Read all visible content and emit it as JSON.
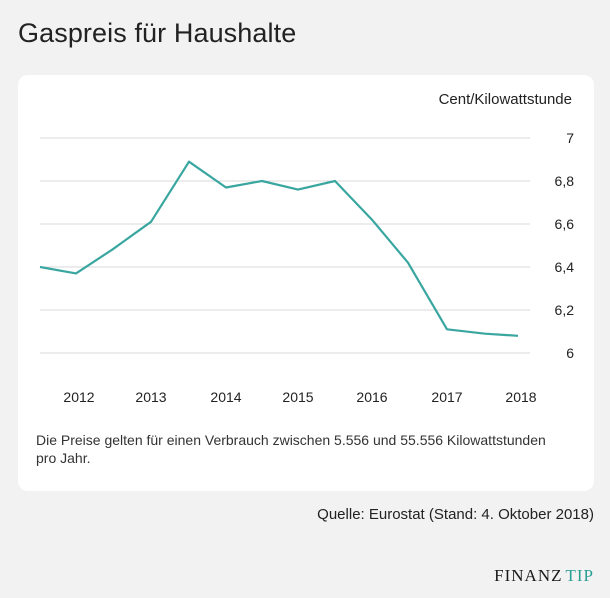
{
  "page": {
    "title": "Gaspreis für Haushalte",
    "unit": "Cent/Kilowattstunde",
    "footnote": "Die Preise gelten für einen Verbrauch zwischen 5.556 und 55.556 Kilowattstunden pro Jahr.",
    "source": "Quelle: Eurostat (Stand: 4. Oktober 2018)",
    "logo_main": "FINANZ",
    "logo_accent": "TIP"
  },
  "colors": {
    "line": "#3aa6a0",
    "grid": "#d9d9d9",
    "text": "#222222"
  },
  "chart_data": {
    "type": "line",
    "title": "Gaspreis für Haushalte",
    "ylabel": "Cent/Kilowattstunde",
    "xlabel": "",
    "x_ticks": [
      "2012",
      "2013",
      "2014",
      "2015",
      "2016",
      "2017",
      "2018"
    ],
    "y_ticks": [
      "6",
      "6,2",
      "6,4",
      "6,6",
      "6,8",
      "7"
    ],
    "ylim": [
      6,
      7
    ],
    "grid": true,
    "x": [
      "2011-S2",
      "2012-S1",
      "2012-S2",
      "2013-S1",
      "2013-S2",
      "2014-S1",
      "2014-S2",
      "2015-S1",
      "2015-S2",
      "2016-S1",
      "2016-S2",
      "2017-S1",
      "2017-S2",
      "2018-S1"
    ],
    "series": [
      {
        "values": [
          6.4,
          6.37,
          6.48,
          6.61,
          6.89,
          6.77,
          6.8,
          6.76,
          6.8,
          6.62,
          6.42,
          6.11,
          6.09,
          6.08
        ]
      }
    ]
  }
}
